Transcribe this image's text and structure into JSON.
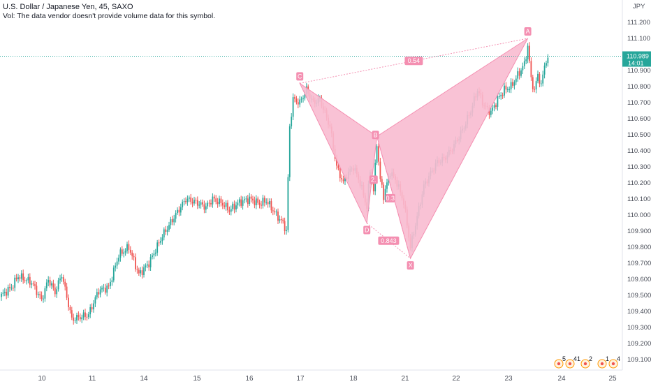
{
  "header": {
    "title": "U.S. Dollar / Japanese Yen, 45, SAXO",
    "volume_note": "Vol: The data vendor doesn't provide volume data for this symbol."
  },
  "price_axis": {
    "unit_label": "JPY",
    "ticks": [
      "111.200",
      "111.100",
      "110.989",
      "110.900",
      "110.800",
      "110.700",
      "110.600",
      "110.500",
      "110.400",
      "110.300",
      "110.200",
      "110.100",
      "110.000",
      "109.900",
      "109.800",
      "109.700",
      "109.600",
      "109.500",
      "109.400",
      "109.300",
      "109.200",
      "109.100"
    ],
    "last_price": "110.989",
    "countdown": "14:01"
  },
  "time_axis": {
    "labels": [
      "10",
      "11",
      "14",
      "15",
      "16",
      "17",
      "18",
      "21",
      "22",
      "23",
      "24",
      "25"
    ]
  },
  "pattern": {
    "points": [
      "X",
      "A",
      "B",
      "C",
      "D"
    ],
    "ratio_labels": [
      "0.54",
      "0.843",
      "2.",
      "0.3"
    ]
  },
  "bottom_badges": [
    "5",
    "41",
    "2",
    "1",
    "4"
  ],
  "colors": {
    "up": "#26a69a",
    "down": "#ef5350",
    "pattern_fill": "#f8bbd0",
    "pattern_edge": "#f48fb1",
    "last_price_bg": "#26a69a"
  },
  "chart_data": {
    "type": "candlestick",
    "symbol": "U.S. Dollar / Japanese Yen",
    "interval": "45",
    "exchange": "SAXO",
    "ylim": [
      109.05,
      111.26
    ],
    "x": [
      "10",
      "11",
      "14",
      "15",
      "16",
      "17",
      "18",
      "21",
      "22",
      "23",
      "24",
      "25"
    ],
    "anchors": [
      [
        0,
        109.5
      ],
      [
        6,
        109.55
      ],
      [
        10,
        109.62
      ],
      [
        18,
        109.58
      ],
      [
        24,
        109.47
      ],
      [
        28,
        109.6
      ],
      [
        32,
        109.52
      ],
      [
        36,
        109.63
      ],
      [
        42,
        109.35
      ],
      [
        52,
        109.38
      ],
      [
        58,
        109.53
      ],
      [
        64,
        109.55
      ],
      [
        70,
        109.75
      ],
      [
        76,
        109.8
      ],
      [
        82,
        109.63
      ],
      [
        88,
        109.7
      ],
      [
        96,
        109.87
      ],
      [
        102,
        109.97
      ],
      [
        110,
        110.1
      ],
      [
        116,
        110.08
      ],
      [
        122,
        110.05
      ],
      [
        126,
        110.1
      ],
      [
        132,
        110.07
      ],
      [
        136,
        110.03
      ],
      [
        142,
        110.08
      ],
      [
        148,
        110.1
      ],
      [
        154,
        110.07
      ],
      [
        158,
        110.09
      ],
      [
        164,
        110.0
      ],
      [
        168,
        109.95
      ],
      [
        170,
        109.9
      ],
      [
        172,
        110.55
      ],
      [
        174,
        110.72
      ],
      [
        178,
        110.7
      ],
      [
        182,
        110.78
      ],
      [
        186,
        110.7
      ],
      [
        190,
        110.72
      ],
      [
        196,
        110.55
      ],
      [
        200,
        110.3
      ],
      [
        204,
        110.2
      ],
      [
        206,
        110.25
      ],
      [
        210,
        110.3
      ],
      [
        214,
        110.2
      ],
      [
        218,
        110.05
      ],
      [
        220,
        110.28
      ],
      [
        222,
        110.15
      ],
      [
        224,
        110.45
      ],
      [
        226,
        110.22
      ],
      [
        228,
        110.12
      ],
      [
        232,
        110.27
      ],
      [
        236,
        110.2
      ],
      [
        240,
        110.08
      ],
      [
        244,
        109.8
      ],
      [
        248,
        109.99
      ],
      [
        252,
        110.18
      ],
      [
        256,
        110.26
      ],
      [
        260,
        110.33
      ],
      [
        264,
        110.35
      ],
      [
        268,
        110.4
      ],
      [
        272,
        110.47
      ],
      [
        276,
        110.55
      ],
      [
        280,
        110.65
      ],
      [
        284,
        110.78
      ],
      [
        288,
        110.68
      ],
      [
        292,
        110.64
      ],
      [
        296,
        110.72
      ],
      [
        300,
        110.78
      ],
      [
        304,
        110.8
      ],
      [
        308,
        110.87
      ],
      [
        312,
        110.94
      ],
      [
        314,
        111.05
      ],
      [
        316,
        110.85
      ],
      [
        318,
        110.77
      ],
      [
        320,
        110.88
      ],
      [
        322,
        110.8
      ],
      [
        324,
        110.94
      ],
      [
        326,
        110.98
      ]
    ]
  }
}
